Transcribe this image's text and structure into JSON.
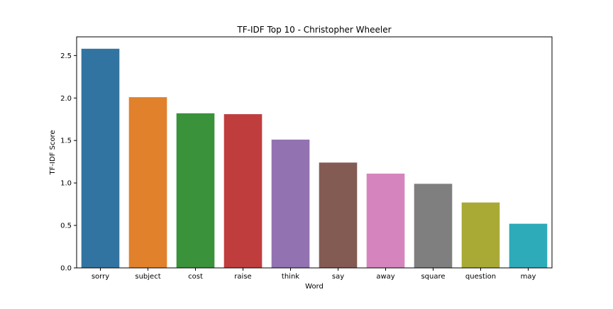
{
  "chart_data": {
    "type": "bar",
    "title": "TF-IDF Top 10 - Christopher Wheeler",
    "xlabel": "Word",
    "ylabel": "TF-IDF Score",
    "categories": [
      "sorry",
      "subject",
      "cost",
      "raise",
      "think",
      "say",
      "away",
      "square",
      "question",
      "may"
    ],
    "values": [
      2.58,
      2.01,
      1.82,
      1.81,
      1.51,
      1.24,
      1.11,
      0.99,
      0.77,
      0.52
    ],
    "ylim": [
      0,
      2.72
    ],
    "yticks": [
      0.0,
      0.5,
      1.0,
      1.5,
      2.0,
      2.5
    ],
    "ytick_labels": [
      "0.0",
      "0.5",
      "1.0",
      "1.5",
      "2.0",
      "2.5"
    ],
    "colors": [
      "#3274a1",
      "#e1812c",
      "#3a923a",
      "#c03d3e",
      "#9372b2",
      "#845b53",
      "#d684bd",
      "#7f7f7f",
      "#a9aa35",
      "#2eabb8"
    ],
    "grid": false,
    "legend": false
  }
}
